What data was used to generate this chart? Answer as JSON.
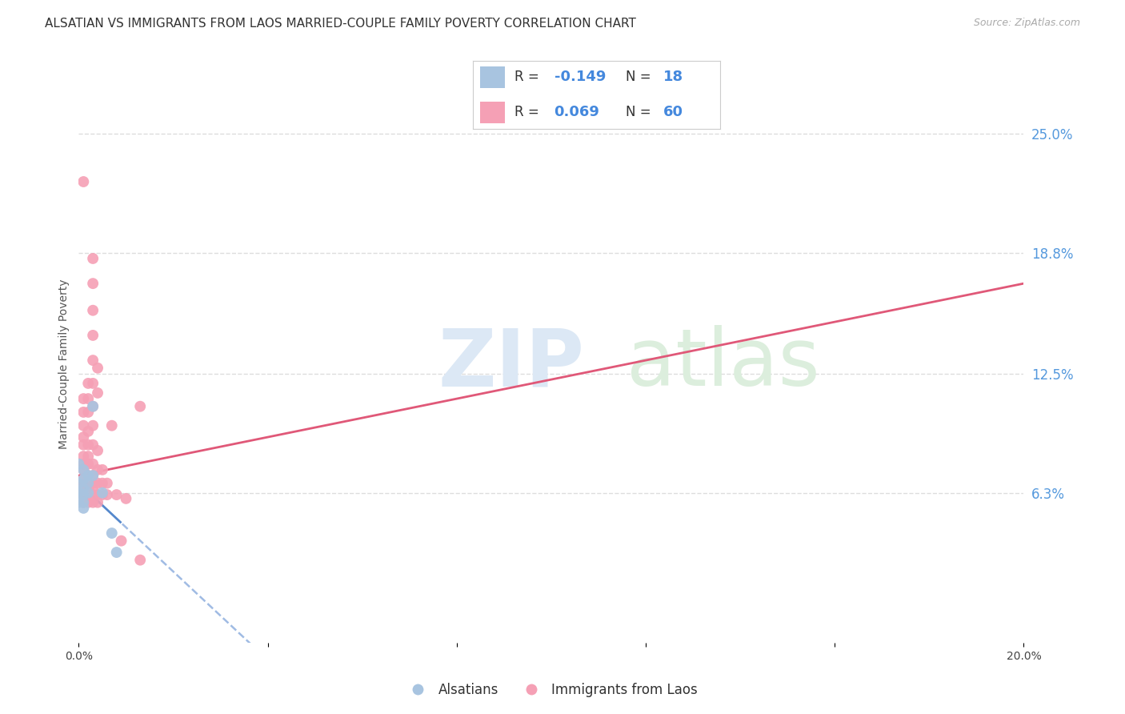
{
  "title": "ALSATIAN VS IMMIGRANTS FROM LAOS MARRIED-COUPLE FAMILY POVERTY CORRELATION CHART",
  "source": "Source: ZipAtlas.com",
  "ylabel": "Married-Couple Family Poverty",
  "ytick_labels": [
    "25.0%",
    "18.8%",
    "12.5%",
    "6.3%"
  ],
  "ytick_values": [
    0.25,
    0.188,
    0.125,
    0.063
  ],
  "xlim": [
    0.0,
    0.2
  ],
  "ylim": [
    -0.015,
    0.275
  ],
  "legend_blue_r": "-0.149",
  "legend_blue_n": "18",
  "legend_pink_r": "0.069",
  "legend_pink_n": "60",
  "blue_scatter": [
    [
      0.0,
      0.078
    ],
    [
      0.0,
      0.068
    ],
    [
      0.0,
      0.063
    ],
    [
      0.0,
      0.058
    ],
    [
      0.001,
      0.075
    ],
    [
      0.001,
      0.07
    ],
    [
      0.001,
      0.065
    ],
    [
      0.001,
      0.062
    ],
    [
      0.001,
      0.058
    ],
    [
      0.001,
      0.055
    ],
    [
      0.002,
      0.072
    ],
    [
      0.002,
      0.068
    ],
    [
      0.002,
      0.063
    ],
    [
      0.003,
      0.108
    ],
    [
      0.003,
      0.072
    ],
    [
      0.005,
      0.063
    ],
    [
      0.007,
      0.042
    ],
    [
      0.008,
      0.032
    ]
  ],
  "pink_scatter": [
    [
      0.0,
      0.063
    ],
    [
      0.0,
      0.068
    ],
    [
      0.001,
      0.058
    ],
    [
      0.001,
      0.062
    ],
    [
      0.001,
      0.065
    ],
    [
      0.001,
      0.07
    ],
    [
      0.001,
      0.075
    ],
    [
      0.001,
      0.078
    ],
    [
      0.001,
      0.082
    ],
    [
      0.001,
      0.088
    ],
    [
      0.001,
      0.092
    ],
    [
      0.001,
      0.098
    ],
    [
      0.001,
      0.105
    ],
    [
      0.001,
      0.112
    ],
    [
      0.001,
      0.225
    ],
    [
      0.002,
      0.058
    ],
    [
      0.002,
      0.062
    ],
    [
      0.002,
      0.065
    ],
    [
      0.002,
      0.068
    ],
    [
      0.002,
      0.072
    ],
    [
      0.002,
      0.078
    ],
    [
      0.002,
      0.082
    ],
    [
      0.002,
      0.088
    ],
    [
      0.002,
      0.095
    ],
    [
      0.002,
      0.105
    ],
    [
      0.002,
      0.112
    ],
    [
      0.002,
      0.12
    ],
    [
      0.003,
      0.058
    ],
    [
      0.003,
      0.062
    ],
    [
      0.003,
      0.065
    ],
    [
      0.003,
      0.068
    ],
    [
      0.003,
      0.072
    ],
    [
      0.003,
      0.078
    ],
    [
      0.003,
      0.088
    ],
    [
      0.003,
      0.098
    ],
    [
      0.003,
      0.108
    ],
    [
      0.003,
      0.12
    ],
    [
      0.003,
      0.132
    ],
    [
      0.003,
      0.145
    ],
    [
      0.003,
      0.158
    ],
    [
      0.003,
      0.172
    ],
    [
      0.003,
      0.185
    ],
    [
      0.004,
      0.058
    ],
    [
      0.004,
      0.062
    ],
    [
      0.004,
      0.068
    ],
    [
      0.004,
      0.075
    ],
    [
      0.004,
      0.085
    ],
    [
      0.004,
      0.115
    ],
    [
      0.004,
      0.128
    ],
    [
      0.005,
      0.062
    ],
    [
      0.005,
      0.068
    ],
    [
      0.005,
      0.075
    ],
    [
      0.006,
      0.062
    ],
    [
      0.006,
      0.068
    ],
    [
      0.007,
      0.098
    ],
    [
      0.008,
      0.062
    ],
    [
      0.009,
      0.038
    ],
    [
      0.01,
      0.06
    ],
    [
      0.013,
      0.108
    ],
    [
      0.013,
      0.028
    ]
  ],
  "blue_color": "#a8c4e0",
  "pink_color": "#f5a0b5",
  "blue_line_color": "#5588cc",
  "blue_dash_color": "#88aadd",
  "pink_line_color": "#e05878",
  "grid_color": "#dddddd",
  "bg_color": "#ffffff",
  "title_fontsize": 11,
  "tick_fontsize": 10,
  "right_tick_color": "#5599dd",
  "watermark_zip_color": "#dce8f5",
  "watermark_atlas_color": "#dceedd"
}
